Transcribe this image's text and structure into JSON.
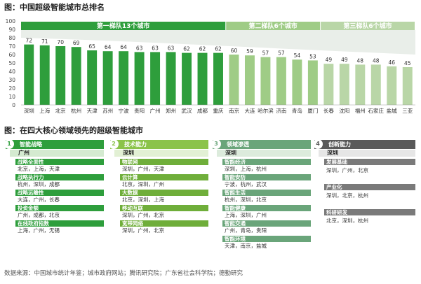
{
  "titles": {
    "chart": "图：中国超级智能城市总排名",
    "panels": "图：在四大核心领域领先的超级智能城市"
  },
  "footnote": "数据来源：中国城市统计年鉴；城市政府网站；腾讯研究院；广东省社会科学院；德勤研究",
  "colors": {
    "tier1": "#2e9e3c",
    "tier2": "#9fcc86",
    "tier3": "#b9d6a7",
    "panel1": "#2e9e3c",
    "panel2": "#8bc34a",
    "panel3": "#6aa57a",
    "panel4": "#595959"
  },
  "chart_data": {
    "type": "bar",
    "title": "图：中国超级智能城市总排名",
    "ylim": [
      0,
      100
    ],
    "yticks": [
      0,
      10,
      20,
      30,
      40,
      50,
      60,
      70,
      80,
      90,
      100
    ],
    "categories": [
      "深圳",
      "上海",
      "北京",
      "杭州",
      "天津",
      "苏州",
      "宁波",
      "贵阳",
      "广州",
      "郑州",
      "武汉",
      "成都",
      "重庆",
      "南京",
      "大连",
      "哈尔滨",
      "济南",
      "青岛",
      "厦门",
      "长春",
      "沈阳",
      "福州",
      "石家庄",
      "盐城",
      "三亚"
    ],
    "values": [
      72,
      71,
      70,
      69,
      65,
      64,
      64,
      63,
      63,
      63,
      62,
      62,
      62,
      60,
      59,
      57,
      57,
      54,
      53,
      49,
      49,
      48,
      48,
      46,
      45
    ],
    "tiers": [
      {
        "name": "第一梯队13个城市",
        "count": 13,
        "color": "#2e9e3c"
      },
      {
        "name": "第二梯队6个城市",
        "count": 6,
        "color": "#9fcc86"
      },
      {
        "name": "第三梯队6个城市",
        "count": 6,
        "color": "#b9d6a7"
      }
    ]
  },
  "panels": [
    {
      "num": "1",
      "title": "智能战略",
      "region": "广州",
      "items": [
        {
          "cat": "战略全面性",
          "cities": "北京，上海，天津"
        },
        {
          "cat": "战略执行力",
          "cities": "杭州，深圳，成都"
        },
        {
          "cat": "战略远瞻性",
          "cities": "大连，广州，长春"
        },
        {
          "cat": "投资金额",
          "cities": "广州，成都，北京"
        },
        {
          "cat": "在线政府指数",
          "cities": "上海，广州，无锡"
        }
      ]
    },
    {
      "num": "2",
      "title": "技术能力",
      "region": "深圳",
      "items": [
        {
          "cat": "物联网",
          "cities": "深圳，广州，天津"
        },
        {
          "cat": "云计算",
          "cities": "北京，深圳，广州"
        },
        {
          "cat": "大数据",
          "cities": "北京，深圳，上海"
        },
        {
          "cat": "移动互联",
          "cities": "深圳，广州，北京"
        },
        {
          "cat": "宽带网络",
          "cities": "深圳，广州，北京"
        }
      ]
    },
    {
      "num": "3",
      "title": "领域渗透",
      "region": "深圳",
      "items": [
        {
          "cat": "智能经济",
          "cities": "深圳，上海，杭州"
        },
        {
          "cat": "智能安防",
          "cities": "宁波，杭州，武汉"
        },
        {
          "cat": "智能生活",
          "cities": "杭州，深圳，北京"
        },
        {
          "cat": "智能健康",
          "cities": "上海，深圳，广州"
        },
        {
          "cat": "智能交通",
          "cities": "广州，青岛，贵阳"
        },
        {
          "cat": "智能环境",
          "cities": "天津，南京，盐城"
        }
      ]
    },
    {
      "num": "4",
      "title": "创新能力",
      "region": "深圳",
      "items": [
        {
          "cat": "发展基础",
          "cities": "深圳，广州，北京"
        },
        {
          "cat": "产业化",
          "cities": "深圳，北京，杭州"
        },
        {
          "cat": "科研研发",
          "cities": "北京，深圳，杭州"
        }
      ]
    }
  ]
}
